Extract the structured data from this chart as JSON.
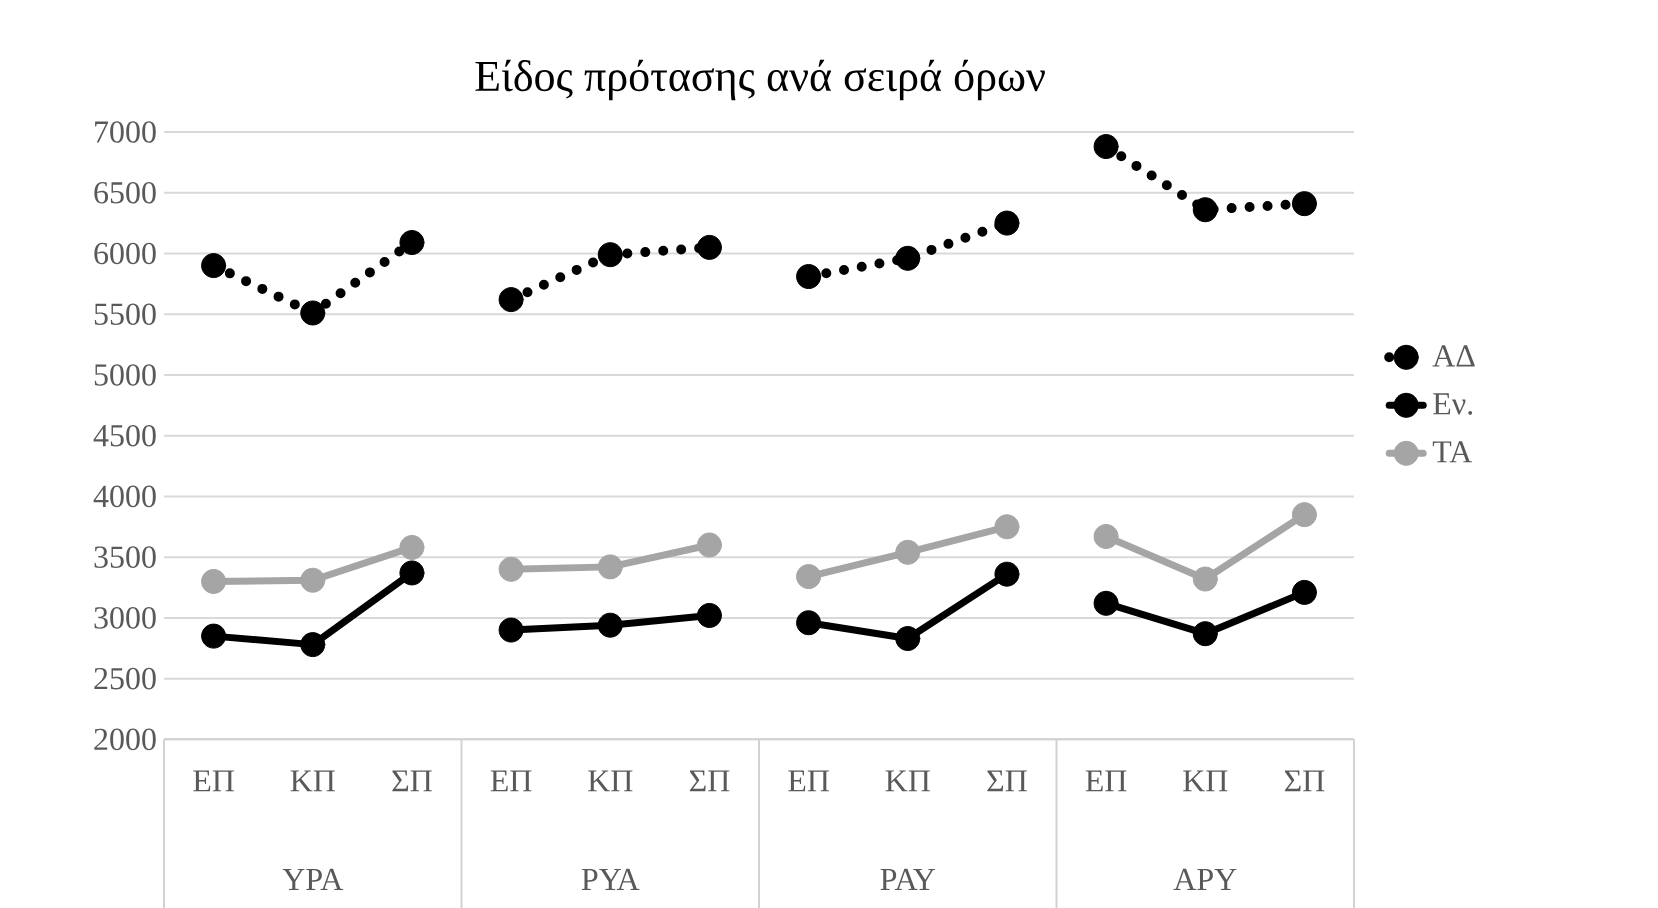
{
  "chart_data": {
    "type": "line",
    "title": "Είδος πρότασης ανά σειρά όρων",
    "categories": [
      "ΕΠ",
      "ΚΠ",
      "ΣΠ",
      "ΕΠ",
      "ΚΠ",
      "ΣΠ",
      "ΕΠ",
      "ΚΠ",
      "ΣΠ",
      "ΕΠ",
      "ΚΠ",
      "ΣΠ"
    ],
    "annotations": [
      "ΥΡΑ",
      "ΡΥΑ",
      "ΡΑΥ",
      "ΑΡΥ"
    ],
    "series": [
      {
        "name": "ΑΔ",
        "color": "#000000",
        "line_style": "dotted",
        "values": [
          5900,
          5510,
          6090,
          5620,
          5990,
          6050,
          5810,
          5960,
          6250,
          6880,
          6360,
          6410
        ]
      },
      {
        "name": "Εν.",
        "color": "#000000",
        "line_style": "solid",
        "values": [
          2850,
          2780,
          3370,
          2900,
          2940,
          3020,
          2960,
          2830,
          3360,
          3120,
          2870,
          3210
        ]
      },
      {
        "name": "ΤΑ",
        "color": "#a5a5a5",
        "line_style": "solid",
        "values": [
          3300,
          3310,
          3580,
          3400,
          3420,
          3600,
          3340,
          3540,
          3750,
          3670,
          3320,
          3850
        ]
      }
    ],
    "ylim": [
      2000,
      7000
    ],
    "yticks": [
      2000,
      2500,
      3000,
      3500,
      4000,
      4500,
      5000,
      5500,
      6000,
      6500,
      7000
    ],
    "grid": "y",
    "legend": "right",
    "marker": "circle"
  }
}
